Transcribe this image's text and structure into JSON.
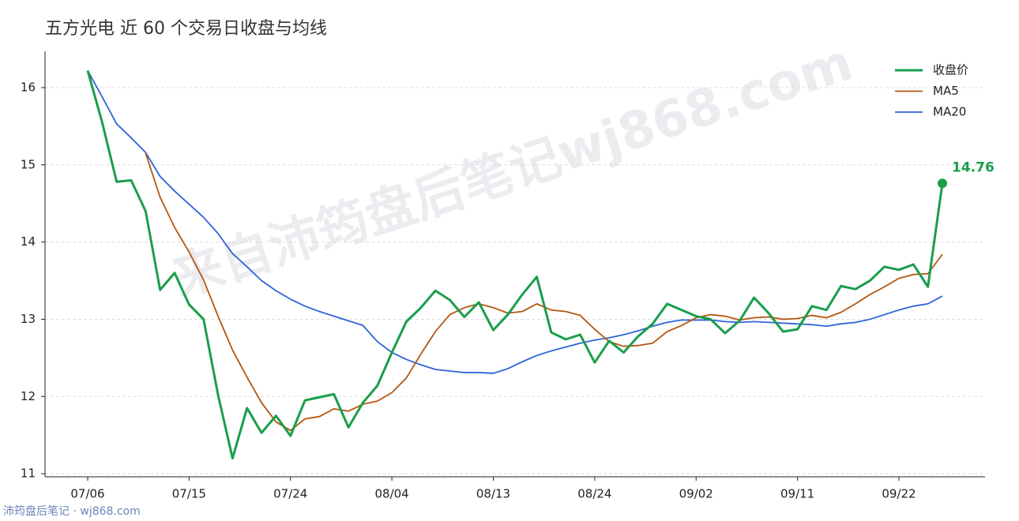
{
  "chart_data": {
    "type": "line",
    "title": "五方光电 近 60 个交易日收盘与均线",
    "watermark": "来自沛筠盘后笔记wj868.com",
    "footer": "沛筠盘后笔记 · wj868.com",
    "categories": [
      "07/06",
      null,
      null,
      null,
      null,
      null,
      null,
      "07/15",
      null,
      null,
      null,
      null,
      null,
      null,
      "07/24",
      null,
      null,
      null,
      null,
      null,
      null,
      "08/04",
      null,
      null,
      null,
      null,
      null,
      null,
      "08/13",
      null,
      null,
      null,
      null,
      null,
      null,
      "08/24",
      null,
      null,
      null,
      null,
      null,
      null,
      "09/02",
      null,
      null,
      null,
      null,
      null,
      null,
      "09/11",
      null,
      null,
      null,
      null,
      null,
      null,
      "09/22",
      null,
      null,
      null
    ],
    "series": [
      {
        "name": "收盘价",
        "color": "#1a9e4b",
        "width": 3,
        "values": [
          16.22,
          15.55,
          14.78,
          14.8,
          14.4,
          13.38,
          13.6,
          13.19,
          13.0,
          12.02,
          11.2,
          11.85,
          11.53,
          11.75,
          11.49,
          11.95,
          11.99,
          12.03,
          11.6,
          11.92,
          12.14,
          12.57,
          12.97,
          13.15,
          13.37,
          13.25,
          13.03,
          13.22,
          12.86,
          13.06,
          13.32,
          13.55,
          12.83,
          12.74,
          12.8,
          12.44,
          12.72,
          12.57,
          12.78,
          12.94,
          13.2,
          13.12,
          13.04,
          13.0,
          12.82,
          12.98,
          13.28,
          13.08,
          12.84,
          12.87,
          13.17,
          13.12,
          13.43,
          13.39,
          13.5,
          13.68,
          13.64,
          13.71,
          13.42,
          14.76
        ]
      },
      {
        "name": "MA5",
        "color": "#b5560f",
        "width": 1.8,
        "values": [
          null,
          null,
          null,
          null,
          15.15,
          14.58,
          14.19,
          13.87,
          13.51,
          13.04,
          12.6,
          12.25,
          11.92,
          11.67,
          11.56,
          11.71,
          11.74,
          11.84,
          11.81,
          11.9,
          11.94,
          12.05,
          12.24,
          12.55,
          12.84,
          13.06,
          13.15,
          13.2,
          13.15,
          13.08,
          13.1,
          13.2,
          13.12,
          13.1,
          13.05,
          12.87,
          12.71,
          12.65,
          12.66,
          12.69,
          12.84,
          12.92,
          13.02,
          13.06,
          13.04,
          12.99,
          13.02,
          13.03,
          13.0,
          13.01,
          13.05,
          13.02,
          13.09,
          13.2,
          13.32,
          13.42,
          13.53,
          13.58,
          13.59,
          13.84
        ]
      },
      {
        "name": "MA20",
        "color": "#2f64d8",
        "width": 1.8,
        "values": [
          16.22,
          15.88,
          15.53,
          15.35,
          15.16,
          14.85,
          14.66,
          14.49,
          14.32,
          14.11,
          13.85,
          13.68,
          13.5,
          13.37,
          13.26,
          13.17,
          13.1,
          13.04,
          12.98,
          12.92,
          12.71,
          12.57,
          12.48,
          12.41,
          12.35,
          12.33,
          12.31,
          12.31,
          12.3,
          12.36,
          12.45,
          12.53,
          12.59,
          12.64,
          12.69,
          12.73,
          12.76,
          12.8,
          12.85,
          12.91,
          12.96,
          12.99,
          12.99,
          12.99,
          12.97,
          12.96,
          12.97,
          12.96,
          12.95,
          12.94,
          12.93,
          12.91,
          12.94,
          12.96,
          13.0,
          13.06,
          13.12,
          13.17,
          13.2,
          13.3
        ]
      }
    ],
    "annotation": "14.76",
    "ylim": [
      10.96,
      16.47
    ],
    "yticks": [
      11,
      12,
      13,
      14,
      15,
      16
    ],
    "grid": true,
    "legend": "upper right"
  }
}
